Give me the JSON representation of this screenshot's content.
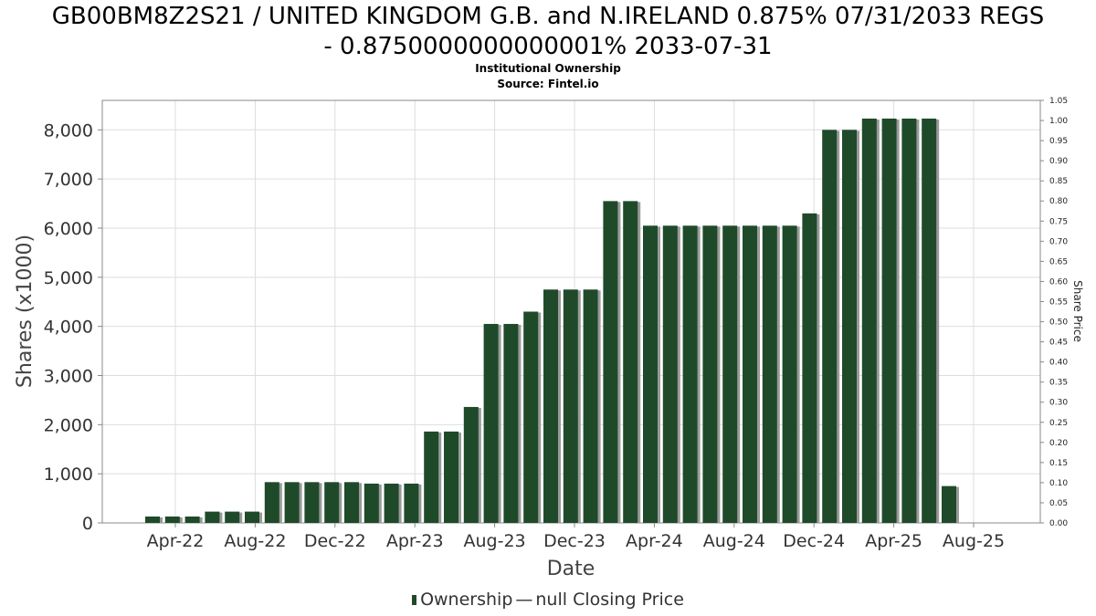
{
  "header": {
    "title_line1": "GB00BM8Z2S21 / UNITED KINGDOM G.B. and N.IRELAND 0.875% 07/31/2033 REGS",
    "title_line2": "- 0.8750000000000001% 2033-07-31",
    "subtitle1": "Institutional Ownership",
    "subtitle2": "Source: Fintel.io"
  },
  "legend": {
    "ownership_label": "Ownership",
    "separator": "—",
    "price_label": "null Closing Price"
  },
  "colors": {
    "bar": "#1f4a2a",
    "bar_shadow": "#9a9a9a",
    "grid": "#dddddd"
  },
  "chart_data": {
    "type": "bar",
    "xlabel": "Date",
    "ylabel": "Shares (x1000)",
    "y2label": "Share Price",
    "ylim": [
      0,
      8600
    ],
    "y2lim": [
      0,
      1.05
    ],
    "yticks": [
      "0",
      "1,000",
      "2,000",
      "3,000",
      "4,000",
      "5,000",
      "6,000",
      "7,000",
      "8,000"
    ],
    "y2ticks": [
      "0.00",
      "0.05",
      "0.10",
      "0.15",
      "0.20",
      "0.25",
      "0.30",
      "0.35",
      "0.40",
      "0.45",
      "0.50",
      "0.55",
      "0.60",
      "0.65",
      "0.70",
      "0.75",
      "0.80",
      "0.85",
      "0.90",
      "0.95",
      "1.00",
      "1.05"
    ],
    "xticks": [
      "Apr-22",
      "Aug-22",
      "Dec-22",
      "Apr-23",
      "Aug-23",
      "Dec-23",
      "Apr-24",
      "Aug-24",
      "Dec-24",
      "Apr-25",
      "Aug-25"
    ],
    "grid": true,
    "series": [
      {
        "name": "Ownership",
        "values": [
          130,
          130,
          130,
          230,
          230,
          230,
          830,
          830,
          830,
          830,
          830,
          800,
          800,
          800,
          1860,
          1860,
          2360,
          4050,
          4050,
          4300,
          4750,
          4750,
          4750,
          6550,
          6550,
          6050,
          6050,
          6050,
          6050,
          6050,
          6050,
          6050,
          6050,
          6300,
          8000,
          8000,
          8230,
          8230,
          8230,
          8230,
          750
        ]
      }
    ]
  }
}
